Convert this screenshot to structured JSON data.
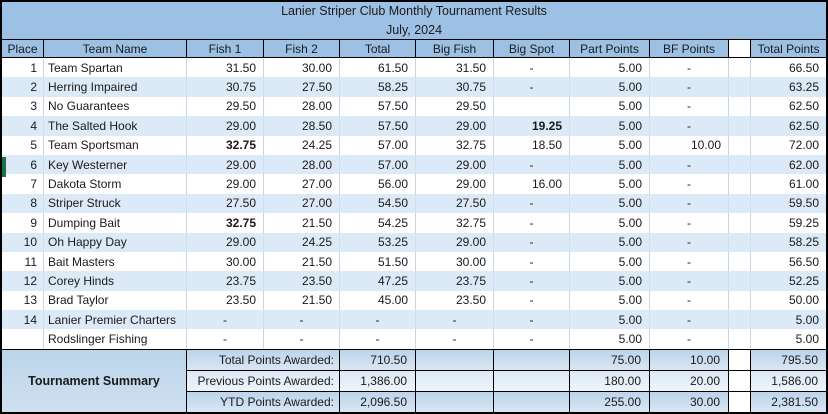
{
  "title": "Lanier Striper Club Monthly Tournament Results",
  "subtitle": "July, 2024",
  "columns": [
    {
      "key": "place",
      "label": "Place"
    },
    {
      "key": "team",
      "label": "Team Name"
    },
    {
      "key": "fish1",
      "label": "Fish 1"
    },
    {
      "key": "fish2",
      "label": "Fish 2"
    },
    {
      "key": "total",
      "label": "Total"
    },
    {
      "key": "big_fish",
      "label": "Big Fish"
    },
    {
      "key": "big_spot",
      "label": "Big Spot"
    },
    {
      "key": "part_points",
      "label": "Part Points"
    },
    {
      "key": "bf_points",
      "label": "BF Points"
    },
    {
      "key": "spacer",
      "label": ""
    },
    {
      "key": "total_points",
      "label": "Total Points"
    }
  ],
  "rows": [
    {
      "place": "1",
      "team": "Team Spartan",
      "fish1": "31.50",
      "fish2": "30.00",
      "total": "61.50",
      "big_fish": "31.50",
      "big_spot": "-",
      "part_points": "5.00",
      "bf_points": "-",
      "total_points": "66.50",
      "bold": []
    },
    {
      "place": "2",
      "team": "Herring Impaired",
      "fish1": "30.75",
      "fish2": "27.50",
      "total": "58.25",
      "big_fish": "30.75",
      "big_spot": "-",
      "part_points": "5.00",
      "bf_points": "-",
      "total_points": "63.25",
      "bold": []
    },
    {
      "place": "3",
      "team": "No Guarantees",
      "fish1": "29.50",
      "fish2": "28.00",
      "total": "57.50",
      "big_fish": "29.50",
      "big_spot": "",
      "part_points": "5.00",
      "bf_points": "-",
      "total_points": "62.50",
      "bold": []
    },
    {
      "place": "4",
      "team": "The Salted Hook",
      "fish1": "29.00",
      "fish2": "28.50",
      "total": "57.50",
      "big_fish": "29.00",
      "big_spot": "19.25",
      "part_points": "5.00",
      "bf_points": "-",
      "total_points": "62.50",
      "bold": [
        "big_spot"
      ]
    },
    {
      "place": "5",
      "team": "Team Sportsman",
      "fish1": "32.75",
      "fish2": "24.25",
      "total": "57.00",
      "big_fish": "32.75",
      "big_spot": "18.50",
      "part_points": "5.00",
      "bf_points": "10.00",
      "total_points": "72.00",
      "bold": [
        "fish1"
      ]
    },
    {
      "place": "6",
      "team": "Key Westerner",
      "fish1": "29.00",
      "fish2": "28.00",
      "total": "57.00",
      "big_fish": "29.00",
      "big_spot": "-",
      "part_points": "5.00",
      "bf_points": "-",
      "total_points": "62.00",
      "bold": []
    },
    {
      "place": "7",
      "team": "Dakota Storm",
      "fish1": "29.00",
      "fish2": "27.00",
      "total": "56.00",
      "big_fish": "29.00",
      "big_spot": "16.00",
      "part_points": "5.00",
      "bf_points": "-",
      "total_points": "61.00",
      "bold": []
    },
    {
      "place": "8",
      "team": "Striper Struck",
      "fish1": "27.50",
      "fish2": "27.00",
      "total": "54.50",
      "big_fish": "27.50",
      "big_spot": "-",
      "part_points": "5.00",
      "bf_points": "-",
      "total_points": "59.50",
      "bold": []
    },
    {
      "place": "9",
      "team": "Dumping Bait",
      "fish1": "32.75",
      "fish2": "21.50",
      "total": "54.25",
      "big_fish": "32.75",
      "big_spot": "-",
      "part_points": "5.00",
      "bf_points": "-",
      "total_points": "59.25",
      "bold": [
        "fish1"
      ]
    },
    {
      "place": "10",
      "team": "Oh Happy Day",
      "fish1": "29.00",
      "fish2": "24.25",
      "total": "53.25",
      "big_fish": "29.00",
      "big_spot": "-",
      "part_points": "5.00",
      "bf_points": "-",
      "total_points": "58.25",
      "bold": []
    },
    {
      "place": "11",
      "team": "Bait Masters",
      "fish1": "30.00",
      "fish2": "21.50",
      "total": "51.50",
      "big_fish": "30.00",
      "big_spot": "-",
      "part_points": "5.00",
      "bf_points": "-",
      "total_points": "56.50",
      "bold": []
    },
    {
      "place": "12",
      "team": "Corey Hinds",
      "fish1": "23.75",
      "fish2": "23.50",
      "total": "47.25",
      "big_fish": "23.75",
      "big_spot": "-",
      "part_points": "5.00",
      "bf_points": "-",
      "total_points": "52.25",
      "bold": []
    },
    {
      "place": "13",
      "team": "Brad Taylor",
      "fish1": "23.50",
      "fish2": "21.50",
      "total": "45.00",
      "big_fish": "23.50",
      "big_spot": "-",
      "part_points": "5.00",
      "bf_points": "-",
      "total_points": "50.00",
      "bold": []
    },
    {
      "place": "14",
      "team": "Lanier Premier Charters",
      "fish1": "-",
      "fish2": "-",
      "total": "-",
      "big_fish": "-",
      "big_spot": "-",
      "part_points": "5.00",
      "bf_points": "-",
      "total_points": "5.00",
      "bold": []
    },
    {
      "place": "",
      "team": "Rodslinger Fishing",
      "fish1": "-",
      "fish2": "-",
      "total": "-",
      "big_fish": "-",
      "big_spot": "-",
      "part_points": "5.00",
      "bf_points": "-",
      "total_points": "5.00",
      "bold": []
    }
  ],
  "summary": {
    "title": "Tournament Summary",
    "rows": [
      {
        "label": "Total Points Awarded:",
        "value": "710.50",
        "part_points": "75.00",
        "bf_points": "10.00",
        "total_points": "795.50",
        "shade": "dark"
      },
      {
        "label": "Previous Points Awarded:",
        "value": "1,386.00",
        "part_points": "180.00",
        "bf_points": "20.00",
        "total_points": "1,586.00",
        "shade": "light"
      },
      {
        "label": "YTD Points Awarded:",
        "value": "2,096.50",
        "part_points": "255.00",
        "bf_points": "30.00",
        "total_points": "2,381.50",
        "shade": "dark"
      }
    ]
  },
  "marker": {
    "row_place": "6",
    "color": "#1E7145"
  },
  "colors": {
    "header_fill": "#9DC1E4",
    "stripe_fill": "#DCE9F6",
    "summary_dark_top": "#BCD4EB",
    "summary_dark_bottom": "#D9E6F3",
    "summary_light_top": "#DCE9F5",
    "summary_light_bottom": "#EDF4FB",
    "marker_green": "#1E7145",
    "grid_line": "#C9D5E0"
  }
}
